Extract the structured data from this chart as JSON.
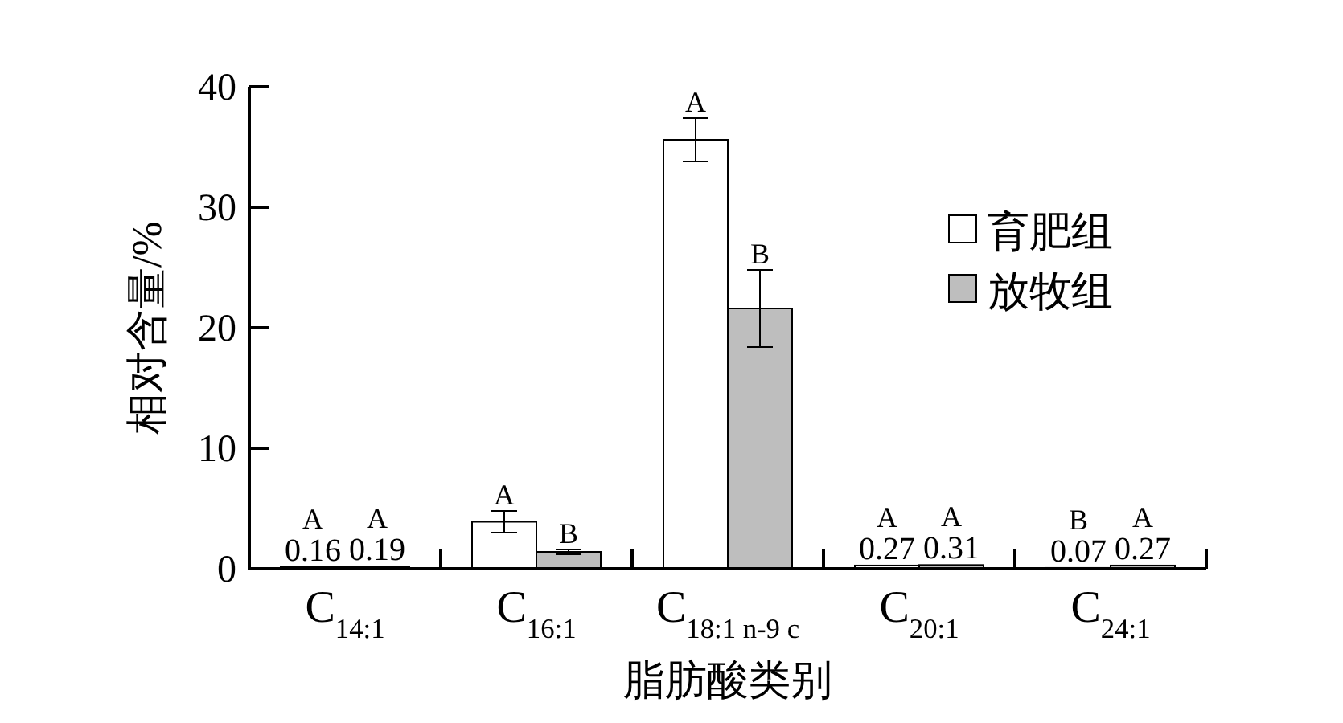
{
  "chart_data": {
    "type": "bar",
    "xlabel": "脂肪酸类别",
    "ylabel": "相对含量/%",
    "categories": [
      "C$_{14:1}$",
      "C$_{16:1}$",
      "C$_{18:1 n-9 c}$",
      "C$_{20:1}$",
      "C$_{24:1}$"
    ],
    "series": [
      {
        "name": "育肥组",
        "color": "#ffffff",
        "values": [
          0.16,
          3.9,
          35.6,
          0.27,
          0.07
        ],
        "errors": [
          null,
          0.9,
          1.8,
          null,
          null
        ],
        "value_labels": [
          "0.16",
          null,
          null,
          "0.27",
          "0.07"
        ]
      },
      {
        "name": "放牧组",
        "color": "#bebebe",
        "values": [
          0.19,
          1.4,
          21.6,
          0.31,
          0.27
        ],
        "errors": [
          null,
          0.2,
          3.2,
          null,
          null
        ],
        "value_labels": [
          "0.19",
          null,
          null,
          "0.31",
          "0.27"
        ]
      }
    ],
    "annotations": [
      {
        "text": "A",
        "x": "C$_{14:1}$",
        "y": 0.16
      },
      {
        "text": "A",
        "x": "C$_{14:1}$",
        "y": 0.19
      },
      {
        "text": "A",
        "x": "C$_{16:1}$",
        "y": 3.9
      },
      {
        "text": "B",
        "x": "C$_{16:1}$",
        "y": 1.4
      },
      {
        "text": "A",
        "x": "C$_{18:1 n-9 c}$",
        "y": 35.6
      },
      {
        "text": "B",
        "x": "C$_{18:1 n-9 c}$",
        "y": 21.6
      },
      {
        "text": "A",
        "x": "C$_{20:1}$",
        "y": 0.27
      },
      {
        "text": "A",
        "x": "C$_{20:1}$",
        "y": 0.31
      },
      {
        "text": "B",
        "x": "C$_{24:1}$",
        "y": 0.07
      },
      {
        "text": "A",
        "x": "C$_{24:1}$",
        "y": 0.27
      }
    ],
    "ylim": [
      0,
      40
    ],
    "yticks": [
      0,
      10,
      20,
      30,
      40
    ],
    "grid": false,
    "legend": "right"
  }
}
